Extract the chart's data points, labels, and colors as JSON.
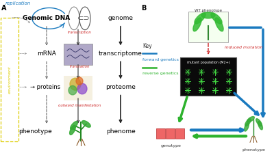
{
  "bg_color": "#ffffff",
  "panel_A_label": "A",
  "panel_B_label": "B",
  "blue_color": "#1a7abf",
  "green_color": "#2db22d",
  "red_color": "#cc2222",
  "yellow_color": "#ddcc00",
  "gray_color": "#555555",
  "genomic_dna": "Genomic DNA",
  "mrna": "mRNA",
  "proteins": "proteins",
  "phenotype_A": "phenotype",
  "genome": "genome",
  "transcriptome": "transcriptome",
  "proteome": "proteome",
  "phenome": "phenome",
  "replication": "replication",
  "environment": "environment",
  "transcription": "transcription",
  "translation": "translation",
  "outward_manifestation": "outward manifestation",
  "key_text": "Key",
  "forward_genetics": "forward genetics",
  "reverse_genetics": "reverse genetics",
  "induced_mutation": "induced mutation",
  "wt_phenotype": "WT phenotype",
  "mutant_population": "mutant population (M2+)",
  "genotype": "genotype",
  "phenotype_B": "phenotype"
}
